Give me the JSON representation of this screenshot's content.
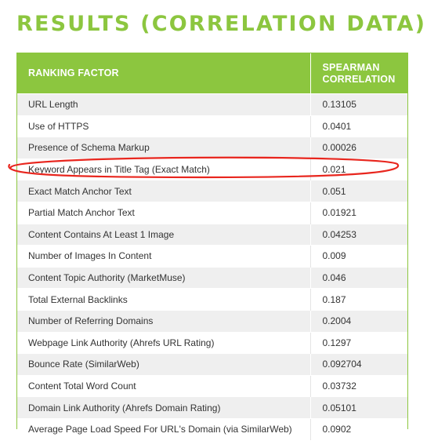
{
  "title": "RESULTS (CORRELATION DATA)",
  "table": {
    "headers": {
      "factor": "RANKING FACTOR",
      "correlation_line1": "SPEARMAN",
      "correlation_line2": "CORRELATION"
    },
    "rows": [
      {
        "factor": "URL Length",
        "value": "0.13105"
      },
      {
        "factor": "Use of HTTPS",
        "value": "0.0401"
      },
      {
        "factor": "Presence of Schema Markup",
        "value": "0.00026"
      },
      {
        "factor": "Keyword Appears in Title Tag (Exact Match)",
        "value": "0.021"
      },
      {
        "factor": "Exact Match Anchor Text",
        "value": "0.051"
      },
      {
        "factor": "Partial Match Anchor Text",
        "value": "0.01921"
      },
      {
        "factor": "Content Contains At Least 1 Image",
        "value": "0.04253"
      },
      {
        "factor": "Number of Images In Content",
        "value": "0.009"
      },
      {
        "factor": "Content Topic Authority (MarketMuse)",
        "value": "0.046"
      },
      {
        "factor": "Total External Backlinks",
        "value": "0.187"
      },
      {
        "factor": "Number of Referring Domains",
        "value": "0.2004"
      },
      {
        "factor": "Webpage Link Authority (Ahrefs URL Rating)",
        "value": "0.1297"
      },
      {
        "factor": "Bounce Rate (SimilarWeb)",
        "value": "0.092704"
      },
      {
        "factor": "Content Total Word Count",
        "value": "0.03732"
      },
      {
        "factor": "Domain Link Authority (Ahrefs Domain Rating)",
        "value": "0.05101"
      },
      {
        "factor": "Average Page Load Speed For URL's Domain (via SimilarWeb)",
        "value": "0.0902"
      }
    ]
  },
  "colors": {
    "accent": "#8cc63f",
    "highlight_ring": "#e8261e",
    "row_shade": "#efefef"
  }
}
